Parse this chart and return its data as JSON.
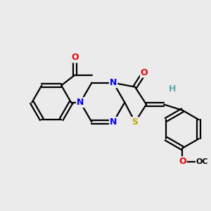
{
  "background_color": "#ebebeb",
  "atom_colors": {
    "C": "#000000",
    "N": "#0000ee",
    "O": "#ee0000",
    "S": "#bbaa00",
    "H": "#5fa8a8"
  },
  "bond_color": "#000000",
  "bond_width": 1.6,
  "font_size": 9,
  "xlim": [
    0,
    10
  ],
  "ylim": [
    0,
    10
  ]
}
